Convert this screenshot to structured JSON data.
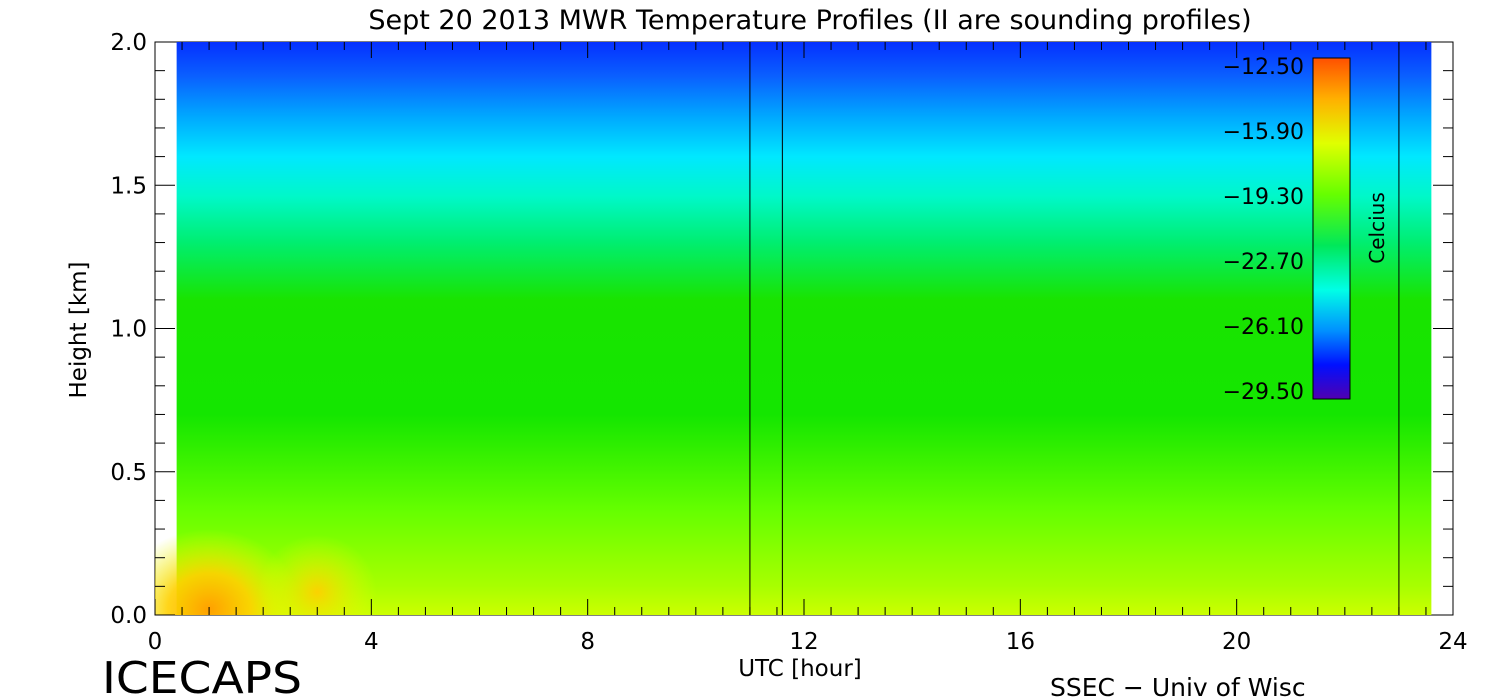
{
  "chart_data": {
    "type": "heatmap",
    "title": "Sept 20 2013 MWR Temperature Profiles (II are sounding profiles)",
    "xlabel": "UTC [hour]",
    "ylabel": "Height [km]",
    "xlim": [
      0,
      24
    ],
    "ylim": [
      0,
      2.0
    ],
    "x_ticks": [
      "0",
      "4",
      "8",
      "12",
      "16",
      "20",
      "24"
    ],
    "y_ticks": [
      "0.0",
      "0.5",
      "1.0",
      "1.5",
      "2.0"
    ],
    "colorbar": {
      "label": "Celcius",
      "range": [
        -29.5,
        -12.5
      ],
      "ticks": [
        "−12.50",
        "−15.90",
        "−19.30",
        "−22.70",
        "−26.10",
        "−29.50"
      ]
    },
    "data_extent_hours": [
      0.4,
      23.6
    ],
    "sounding_times_hours": [
      11.0,
      11.6,
      23.0
    ],
    "field_description": "Temperature decreasing with height; warm (about -13 C) near surface around 0-3.5 UTC, green (about -18 to -20 C) through most of the lower column, cyan/blue (about -24 to -27 C) above ~1.3 km."
  },
  "footer": {
    "left_logo": "ICECAPS",
    "right_credit": "SSEC − Univ of Wisc"
  }
}
